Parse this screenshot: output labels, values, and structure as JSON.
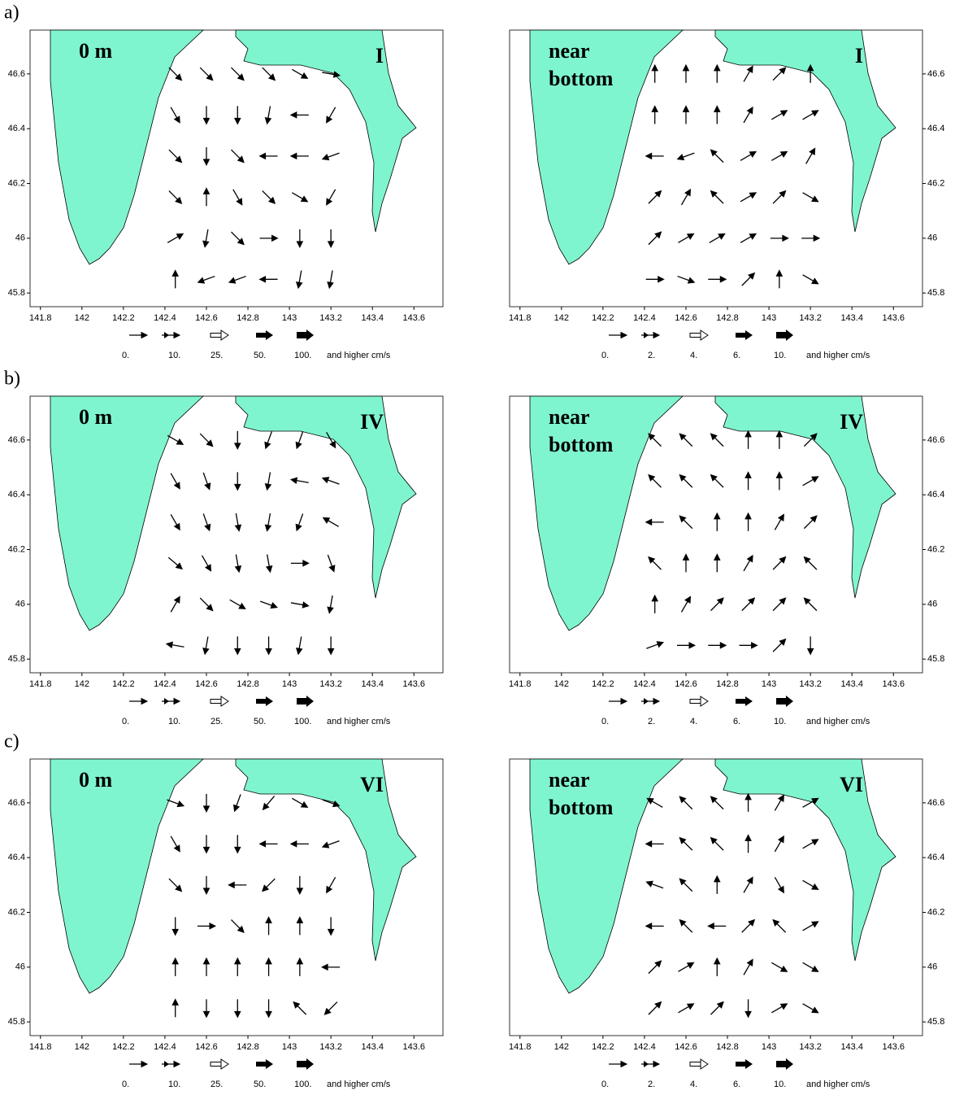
{
  "chart_data": [
    {
      "type": "quiver",
      "panel_label": "a)",
      "depth": [
        "0 m"
      ],
      "period": "I",
      "xlim": [
        141.75,
        143.74
      ],
      "ylim": [
        45.75,
        46.76
      ],
      "xticks": [
        141.8,
        142,
        142.2,
        142.4,
        142.6,
        142.8,
        143,
        143.2,
        143.4,
        143.6
      ],
      "yticks": [
        45.8,
        46,
        46.2,
        46.4,
        46.6
      ],
      "x": [
        142.45,
        142.6,
        142.75,
        142.9,
        143.05,
        143.2
      ],
      "y": [
        46.6,
        46.45,
        46.3,
        46.15,
        46.0,
        45.85
      ],
      "angle": [
        [
          -45,
          -45,
          -45,
          -45,
          -30,
          -10
        ],
        [
          -60,
          -90,
          -90,
          -100,
          180,
          -120
        ],
        [
          -45,
          -90,
          -45,
          180,
          180,
          200
        ],
        [
          -45,
          90,
          -60,
          -45,
          -30,
          -120
        ],
        [
          30,
          -100,
          -45,
          0,
          -90,
          -90
        ],
        [
          90,
          200,
          200,
          180,
          -100,
          -100
        ]
      ],
      "legend_labels": [
        "0.",
        "10.",
        "25.",
        "50.",
        "100."
      ],
      "legend_unit": "and higher cm/s"
    },
    {
      "type": "quiver",
      "depth": [
        "near",
        "bottom"
      ],
      "period": "I",
      "xlim": [
        141.75,
        143.74
      ],
      "ylim": [
        45.75,
        46.76
      ],
      "xticks": [
        141.8,
        142,
        142.2,
        142.4,
        142.6,
        142.8,
        143,
        143.2,
        143.4,
        143.6
      ],
      "yticks": [
        45.8,
        46,
        46.2,
        46.4,
        46.6
      ],
      "x": [
        142.45,
        142.6,
        142.75,
        142.9,
        143.05,
        143.2
      ],
      "y": [
        46.6,
        46.45,
        46.3,
        46.15,
        46.0,
        45.85
      ],
      "angle": [
        [
          90,
          90,
          90,
          60,
          45,
          90
        ],
        [
          90,
          90,
          90,
          60,
          30,
          30
        ],
        [
          180,
          200,
          135,
          30,
          30,
          60
        ],
        [
          45,
          60,
          135,
          30,
          45,
          -30
        ],
        [
          45,
          30,
          30,
          30,
          0,
          0
        ],
        [
          0,
          -20,
          0,
          45,
          90,
          -30
        ]
      ],
      "legend_labels": [
        "0.",
        "2.",
        "4.",
        "6.",
        "10."
      ],
      "legend_unit": "and higher cm/s"
    },
    {
      "type": "quiver",
      "panel_label": "b)",
      "depth": [
        "0 m"
      ],
      "period": "IV",
      "xlim": [
        141.75,
        143.74
      ],
      "ylim": [
        45.75,
        46.76
      ],
      "xticks": [
        141.8,
        142,
        142.2,
        142.4,
        142.6,
        142.8,
        143,
        143.2,
        143.4,
        143.6
      ],
      "yticks": [
        45.8,
        46,
        46.2,
        46.4,
        46.6
      ],
      "x": [
        142.45,
        142.6,
        142.75,
        142.9,
        143.05,
        143.2
      ],
      "y": [
        46.6,
        46.45,
        46.3,
        46.15,
        46.0,
        45.85
      ],
      "angle": [
        [
          -30,
          -45,
          -90,
          -110,
          -110,
          -60
        ],
        [
          -60,
          -70,
          -90,
          -100,
          170,
          160
        ],
        [
          -60,
          -70,
          -80,
          -100,
          -110,
          150
        ],
        [
          -40,
          -60,
          -80,
          -80,
          0,
          -70
        ],
        [
          60,
          -45,
          -30,
          -20,
          -10,
          -100
        ],
        [
          170,
          -100,
          -90,
          -90,
          -100,
          -90
        ]
      ],
      "legend_labels": [
        "0.",
        "10.",
        "25.",
        "50.",
        "100."
      ],
      "legend_unit": "and higher cm/s"
    },
    {
      "type": "quiver",
      "depth": [
        "near",
        "bottom"
      ],
      "period": "IV",
      "xlim": [
        141.75,
        143.74
      ],
      "ylim": [
        45.75,
        46.76
      ],
      "xticks": [
        141.8,
        142,
        142.2,
        142.4,
        142.6,
        142.8,
        143,
        143.2,
        143.4,
        143.6
      ],
      "yticks": [
        45.8,
        46,
        46.2,
        46.4,
        46.6
      ],
      "x": [
        142.45,
        142.6,
        142.75,
        142.9,
        143.05,
        143.2
      ],
      "y": [
        46.6,
        46.45,
        46.3,
        46.15,
        46.0,
        45.85
      ],
      "angle": [
        [
          135,
          135,
          135,
          90,
          90,
          45
        ],
        [
          135,
          135,
          135,
          90,
          90,
          30
        ],
        [
          180,
          135,
          90,
          90,
          60,
          45
        ],
        [
          135,
          90,
          90,
          60,
          45,
          135
        ],
        [
          90,
          60,
          45,
          45,
          45,
          135
        ],
        [
          20,
          0,
          0,
          0,
          45,
          -90
        ]
      ],
      "legend_labels": [
        "0.",
        "2.",
        "4.",
        "6.",
        "10."
      ],
      "legend_unit": "and higher cm/s"
    },
    {
      "type": "quiver",
      "panel_label": "c)",
      "depth": [
        "0 m"
      ],
      "period": "VI",
      "xlim": [
        141.75,
        143.74
      ],
      "ylim": [
        45.75,
        46.76
      ],
      "xticks": [
        141.8,
        142,
        142.2,
        142.4,
        142.6,
        142.8,
        143,
        143.2,
        143.4,
        143.6
      ],
      "yticks": [
        45.8,
        46,
        46.2,
        46.4,
        46.6
      ],
      "x": [
        142.45,
        142.6,
        142.75,
        142.9,
        143.05,
        143.2
      ],
      "y": [
        46.6,
        46.45,
        46.3,
        46.15,
        46.0,
        45.85
      ],
      "angle": [
        [
          -20,
          -90,
          -110,
          -130,
          -30,
          -20
        ],
        [
          -60,
          -90,
          -90,
          180,
          180,
          200
        ],
        [
          -45,
          -90,
          180,
          -135,
          -90,
          -120
        ],
        [
          -90,
          0,
          -45,
          90,
          90,
          -90
        ],
        [
          90,
          90,
          90,
          90,
          90,
          180
        ],
        [
          90,
          -90,
          -90,
          -90,
          135,
          -135
        ]
      ],
      "legend_labels": [
        "0.",
        "10.",
        "25.",
        "50.",
        "100."
      ],
      "legend_unit": "and higher cm/s"
    },
    {
      "type": "quiver",
      "depth": [
        "near",
        "bottom"
      ],
      "period": "VI",
      "xlim": [
        141.75,
        143.74
      ],
      "ylim": [
        45.75,
        46.76
      ],
      "xticks": [
        141.8,
        142,
        142.2,
        142.4,
        142.6,
        142.8,
        143,
        143.2,
        143.4,
        143.6
      ],
      "yticks": [
        45.8,
        46,
        46.2,
        46.4,
        46.6
      ],
      "x": [
        142.45,
        142.6,
        142.75,
        142.9,
        143.05,
        143.2
      ],
      "y": [
        46.6,
        46.45,
        46.3,
        46.15,
        46.0,
        45.85
      ],
      "angle": [
        [
          150,
          135,
          135,
          90,
          60,
          30
        ],
        [
          180,
          135,
          135,
          90,
          60,
          30
        ],
        [
          160,
          135,
          90,
          60,
          -60,
          -30
        ],
        [
          180,
          135,
          180,
          45,
          135,
          30
        ],
        [
          45,
          30,
          90,
          60,
          -30,
          -30
        ],
        [
          45,
          30,
          45,
          -90,
          30,
          -30
        ]
      ],
      "legend_labels": [
        "0.",
        "2.",
        "4.",
        "6.",
        "10."
      ],
      "legend_unit": "and higher cm/s"
    }
  ]
}
